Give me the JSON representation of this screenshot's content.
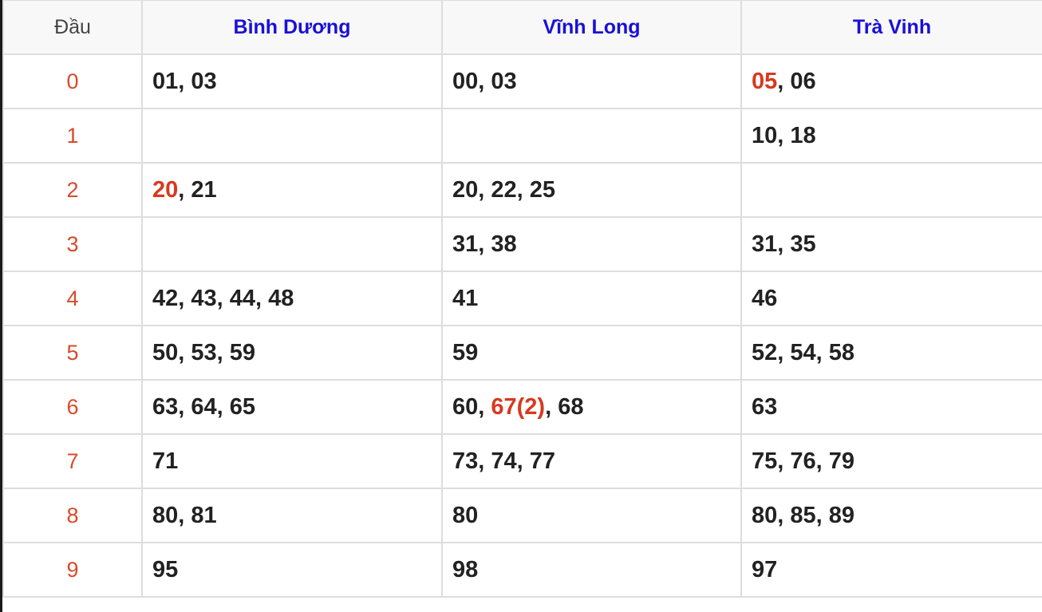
{
  "header": {
    "dau": "Đầu",
    "provinces": [
      "Bình Dương",
      "Vĩnh Long",
      "Trà Vinh"
    ]
  },
  "colors": {
    "header_text": "#1a10d6",
    "head_digit": "#d84a2b",
    "highlight": "#d8391e",
    "number": "#222222"
  },
  "rows": [
    {
      "head": "0",
      "cells": [
        [
          {
            "n": "01"
          },
          {
            "n": "03"
          }
        ],
        [
          {
            "n": "00"
          },
          {
            "n": "03"
          }
        ],
        [
          {
            "n": "05",
            "hl": true
          },
          {
            "n": "06"
          }
        ]
      ]
    },
    {
      "head": "1",
      "cells": [
        [],
        [],
        [
          {
            "n": "10"
          },
          {
            "n": "18"
          }
        ]
      ]
    },
    {
      "head": "2",
      "cells": [
        [
          {
            "n": "20",
            "hl": true
          },
          {
            "n": "21"
          }
        ],
        [
          {
            "n": "20"
          },
          {
            "n": "22"
          },
          {
            "n": "25"
          }
        ],
        []
      ]
    },
    {
      "head": "3",
      "cells": [
        [],
        [
          {
            "n": "31"
          },
          {
            "n": "38"
          }
        ],
        [
          {
            "n": "31"
          },
          {
            "n": "35"
          }
        ]
      ]
    },
    {
      "head": "4",
      "cells": [
        [
          {
            "n": "42"
          },
          {
            "n": "43"
          },
          {
            "n": "44"
          },
          {
            "n": "48"
          }
        ],
        [
          {
            "n": "41"
          }
        ],
        [
          {
            "n": "46"
          }
        ]
      ]
    },
    {
      "head": "5",
      "cells": [
        [
          {
            "n": "50"
          },
          {
            "n": "53"
          },
          {
            "n": "59"
          }
        ],
        [
          {
            "n": "59"
          }
        ],
        [
          {
            "n": "52"
          },
          {
            "n": "54"
          },
          {
            "n": "58"
          }
        ]
      ]
    },
    {
      "head": "6",
      "cells": [
        [
          {
            "n": "63"
          },
          {
            "n": "64"
          },
          {
            "n": "65"
          }
        ],
        [
          {
            "n": "60"
          },
          {
            "n": "67(2)",
            "hl": true
          },
          {
            "n": "68"
          }
        ],
        [
          {
            "n": "63"
          }
        ]
      ]
    },
    {
      "head": "7",
      "cells": [
        [
          {
            "n": "71"
          }
        ],
        [
          {
            "n": "73"
          },
          {
            "n": "74"
          },
          {
            "n": "77"
          }
        ],
        [
          {
            "n": "75"
          },
          {
            "n": "76"
          },
          {
            "n": "79"
          }
        ]
      ]
    },
    {
      "head": "8",
      "cells": [
        [
          {
            "n": "80"
          },
          {
            "n": "81"
          }
        ],
        [
          {
            "n": "80"
          }
        ],
        [
          {
            "n": "80"
          },
          {
            "n": "85"
          },
          {
            "n": "89"
          }
        ]
      ]
    },
    {
      "head": "9",
      "cells": [
        [
          {
            "n": "95"
          }
        ],
        [
          {
            "n": "98"
          }
        ],
        [
          {
            "n": "97"
          }
        ]
      ]
    }
  ]
}
